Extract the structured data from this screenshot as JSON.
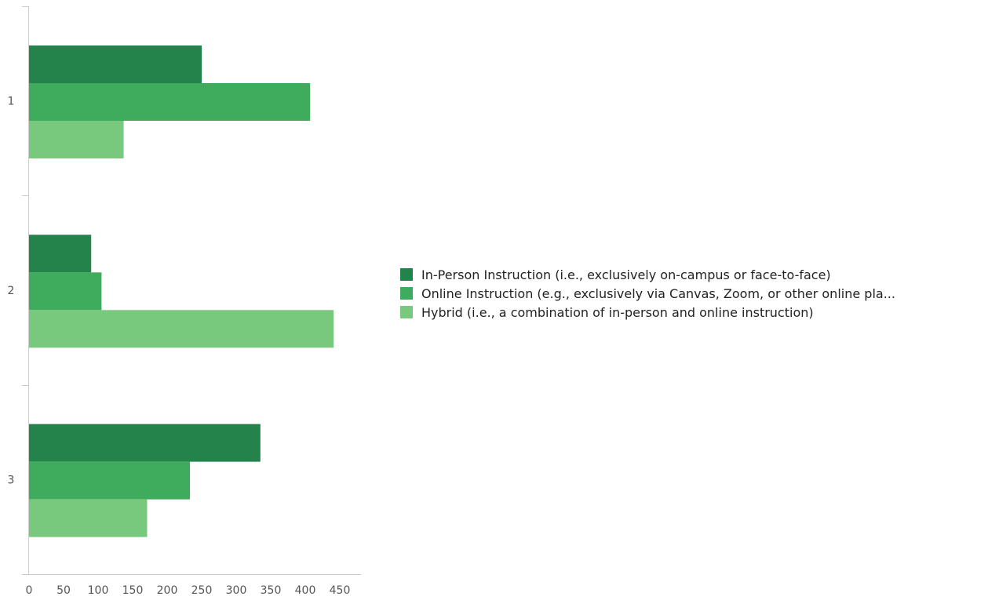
{
  "chart_data": {
    "type": "bar",
    "orientation": "horizontal",
    "categories": [
      "1",
      "2",
      "3"
    ],
    "series": [
      {
        "name": "In-Person Instruction (i.e., exclusively on-campus or face-to-face)",
        "color": "#23834a",
        "values": [
          250,
          90,
          335
        ]
      },
      {
        "name": "Online Instruction (e.g., exclusively via Canvas, Zoom, or other online pla...",
        "color": "#3fab5c",
        "values": [
          407,
          105,
          233
        ]
      },
      {
        "name": "Hybrid (i.e., a combination of in-person and online instruction)",
        "color": "#78c87d",
        "values": [
          137,
          441,
          171
        ]
      }
    ],
    "xlim": [
      0,
      450
    ],
    "xticks": [
      "0",
      "50",
      "100",
      "150",
      "200",
      "250",
      "300",
      "350",
      "400",
      "450"
    ],
    "grid": false,
    "legend_position": "right"
  }
}
